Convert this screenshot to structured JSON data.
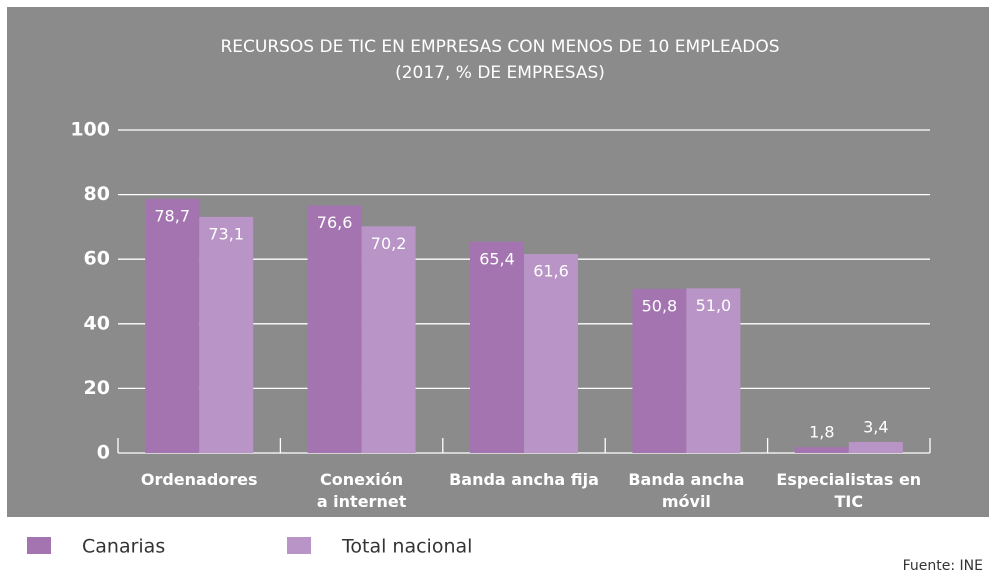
{
  "chart_data": {
    "type": "bar",
    "title": "RECURSOS DE TIC EN EMPRESAS CON MENOS DE 10 EMPLEADOS",
    "subtitle": "(2017, % DE EMPRESAS)",
    "categories": [
      "Ordenadores",
      "Conexión\na internet",
      "Banda ancha fija",
      "Banda ancha\nmóvil",
      "Especialistas en\nTIC"
    ],
    "series": [
      {
        "name": "Canarias",
        "color": "#a374b0",
        "values": [
          78.7,
          76.6,
          65.4,
          50.8,
          1.8
        ],
        "value_labels": [
          "78,7",
          "76,6",
          "65,4",
          "50,8",
          "1,8"
        ]
      },
      {
        "name": "Total nacional",
        "color": "#b994c6",
        "values": [
          73.1,
          70.2,
          61.6,
          51.0,
          3.4
        ],
        "value_labels": [
          "73,1",
          "70,2",
          "61,6",
          "51,0",
          "3,4"
        ]
      }
    ],
    "ylim": [
      0,
      100
    ],
    "yticks": [
      0,
      20,
      40,
      60,
      80,
      100
    ],
    "grid": true,
    "source": "Fuente: INE"
  }
}
